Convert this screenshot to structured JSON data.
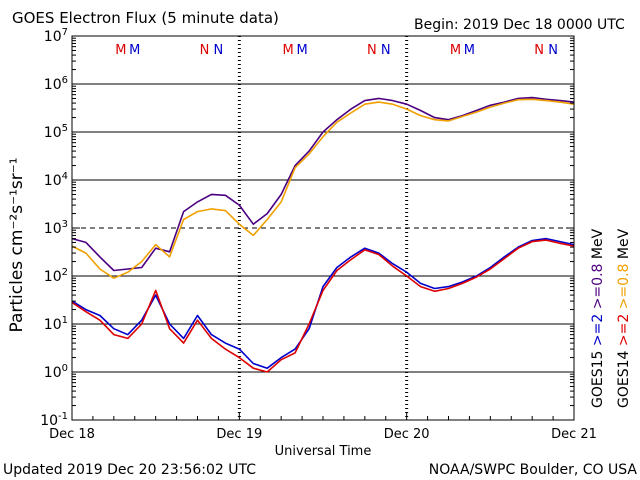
{
  "header": {
    "title": "GOES Electron Flux (5 minute data)",
    "begin": "Begin: 2019 Dec 18 0000 UTC"
  },
  "footer": {
    "updated": "Updated 2019 Dec 20 23:56:02 UTC",
    "credit": "NOAA/SWPC Boulder, CO USA"
  },
  "chart_data": {
    "type": "line",
    "title": "GOES Electron Flux (5 minute data)",
    "xlabel": "Universal Time",
    "ylabel": "Particles cm⁻²s⁻¹sr⁻¹",
    "yscale": "log",
    "ylim": [
      0.1,
      10000000
    ],
    "xlim": [
      "2019-12-18 00:00",
      "2019-12-21 00:00"
    ],
    "x_tick_labels": [
      "Dec 18",
      "Dec 19",
      "Dec 20",
      "Dec 21"
    ],
    "y_tick_labels": [
      {
        "base": "10",
        "exp": "-1",
        "value": 0.1
      },
      {
        "base": "10",
        "exp": "0",
        "value": 1
      },
      {
        "base": "10",
        "exp": "1",
        "value": 10
      },
      {
        "base": "10",
        "exp": "2",
        "value": 100
      },
      {
        "base": "10",
        "exp": "3",
        "value": 1000
      },
      {
        "base": "10",
        "exp": "4",
        "value": 10000
      },
      {
        "base": "10",
        "exp": "5",
        "value": 100000
      },
      {
        "base": "10",
        "exp": "6",
        "value": 1000000
      },
      {
        "base": "10",
        "exp": "7",
        "value": 10000000
      }
    ],
    "threshold": {
      "value": 1000,
      "style": "dashed"
    },
    "grid": "horizontal at each decade",
    "day_markers": [
      "2019-12-19 00:00",
      "2019-12-20 00:00"
    ],
    "orbit_markers": [
      {
        "label": "M",
        "color": "#dd0000",
        "time": "2019-12-18 07:00"
      },
      {
        "label": "M",
        "color": "#0000cc",
        "time": "2019-12-18 09:00"
      },
      {
        "label": "N",
        "color": "#dd0000",
        "time": "2019-12-18 19:00"
      },
      {
        "label": "N",
        "color": "#0000cc",
        "time": "2019-12-18 21:00"
      },
      {
        "label": "M",
        "color": "#dd0000",
        "time": "2019-12-19 07:00"
      },
      {
        "label": "M",
        "color": "#0000cc",
        "time": "2019-12-19 09:00"
      },
      {
        "label": "N",
        "color": "#dd0000",
        "time": "2019-12-19 19:00"
      },
      {
        "label": "N",
        "color": "#0000cc",
        "time": "2019-12-19 21:00"
      },
      {
        "label": "M",
        "color": "#dd0000",
        "time": "2019-12-20 07:00"
      },
      {
        "label": "M",
        "color": "#0000cc",
        "time": "2019-12-20 09:00"
      },
      {
        "label": "N",
        "color": "#dd0000",
        "time": "2019-12-20 19:00"
      },
      {
        "label": "N",
        "color": "#0000cc",
        "time": "2019-12-20 21:00"
      }
    ],
    "legend": {
      "placement": "right, rotated",
      "items": [
        {
          "label": "GOES15",
          "color": "#000000"
        },
        {
          "label": ">=2",
          "color": "#0000cc"
        },
        {
          "label": ">=0.8",
          "color": "#4b0082"
        },
        {
          "label": "MeV",
          "color": "#000000"
        },
        {
          "label": "GOES14",
          "color": "#000000"
        },
        {
          "label": ">=2",
          "color": "#dd0000"
        },
        {
          "label": ">=0.8",
          "color": "#f0a000"
        },
        {
          "label": "MeV",
          "color": "#000000"
        }
      ]
    },
    "series": [
      {
        "color": "#4b0082",
        "x_hours": [
          0,
          2,
          4,
          6,
          8,
          10,
          12,
          14,
          16,
          18,
          20,
          22,
          24,
          26,
          28,
          30,
          32,
          34,
          36,
          38,
          40,
          42,
          44,
          46,
          48,
          50,
          52,
          54,
          56,
          58,
          60,
          62,
          64,
          66,
          68,
          70,
          72
        ],
        "values": [
          600,
          500,
          250,
          130,
          140,
          150,
          380,
          320,
          2200,
          3500,
          5000,
          4800,
          3000,
          1200,
          2000,
          5000,
          20000,
          40000,
          100000,
          180000,
          300000,
          450000,
          500000,
          450000,
          380000,
          280000,
          200000,
          180000,
          220000,
          280000,
          360000,
          420000,
          500000,
          520000,
          480000,
          450000,
          420000
        ]
      },
      {
        "color": "#f0a000",
        "x_hours": [
          0,
          2,
          4,
          6,
          8,
          10,
          12,
          14,
          16,
          18,
          20,
          22,
          24,
          26,
          28,
          30,
          32,
          34,
          36,
          38,
          40,
          42,
          44,
          46,
          48,
          50,
          52,
          54,
          56,
          58,
          60,
          62,
          64,
          66,
          68,
          70,
          72
        ],
        "values": [
          420,
          300,
          140,
          90,
          120,
          200,
          450,
          250,
          1500,
          2200,
          2500,
          2300,
          1200,
          700,
          1500,
          3500,
          18000,
          35000,
          80000,
          160000,
          250000,
          380000,
          420000,
          380000,
          300000,
          220000,
          180000,
          170000,
          210000,
          260000,
          330000,
          400000,
          470000,
          480000,
          450000,
          420000,
          380000
        ]
      },
      {
        "color": "#0000cc",
        "x_hours": [
          0,
          2,
          4,
          6,
          8,
          10,
          12,
          14,
          16,
          18,
          20,
          22,
          24,
          26,
          28,
          30,
          32,
          34,
          36,
          38,
          40,
          42,
          44,
          46,
          48,
          50,
          52,
          54,
          56,
          58,
          60,
          62,
          64,
          66,
          68,
          70,
          72
        ],
        "values": [
          30,
          20,
          15,
          8,
          6,
          12,
          40,
          10,
          5,
          15,
          6,
          4,
          3,
          1.5,
          1.2,
          2,
          3,
          8,
          60,
          150,
          250,
          380,
          300,
          180,
          120,
          70,
          55,
          60,
          75,
          100,
          150,
          250,
          400,
          550,
          600,
          520,
          450
        ]
      },
      {
        "color": "#dd0000",
        "x_hours": [
          0,
          2,
          4,
          6,
          8,
          10,
          12,
          14,
          16,
          18,
          20,
          22,
          24,
          26,
          28,
          30,
          32,
          34,
          36,
          38,
          40,
          42,
          44,
          46,
          48,
          50,
          52,
          54,
          56,
          58,
          60,
          62,
          64,
          66,
          68,
          70,
          72
        ],
        "values": [
          28,
          18,
          12,
          6,
          5,
          10,
          50,
          8,
          4,
          12,
          5,
          3,
          2,
          1.2,
          1,
          1.8,
          2.5,
          10,
          50,
          130,
          220,
          350,
          280,
          160,
          100,
          60,
          48,
          55,
          70,
          95,
          140,
          230,
          380,
          520,
          560,
          480,
          420
        ]
      }
    ]
  }
}
